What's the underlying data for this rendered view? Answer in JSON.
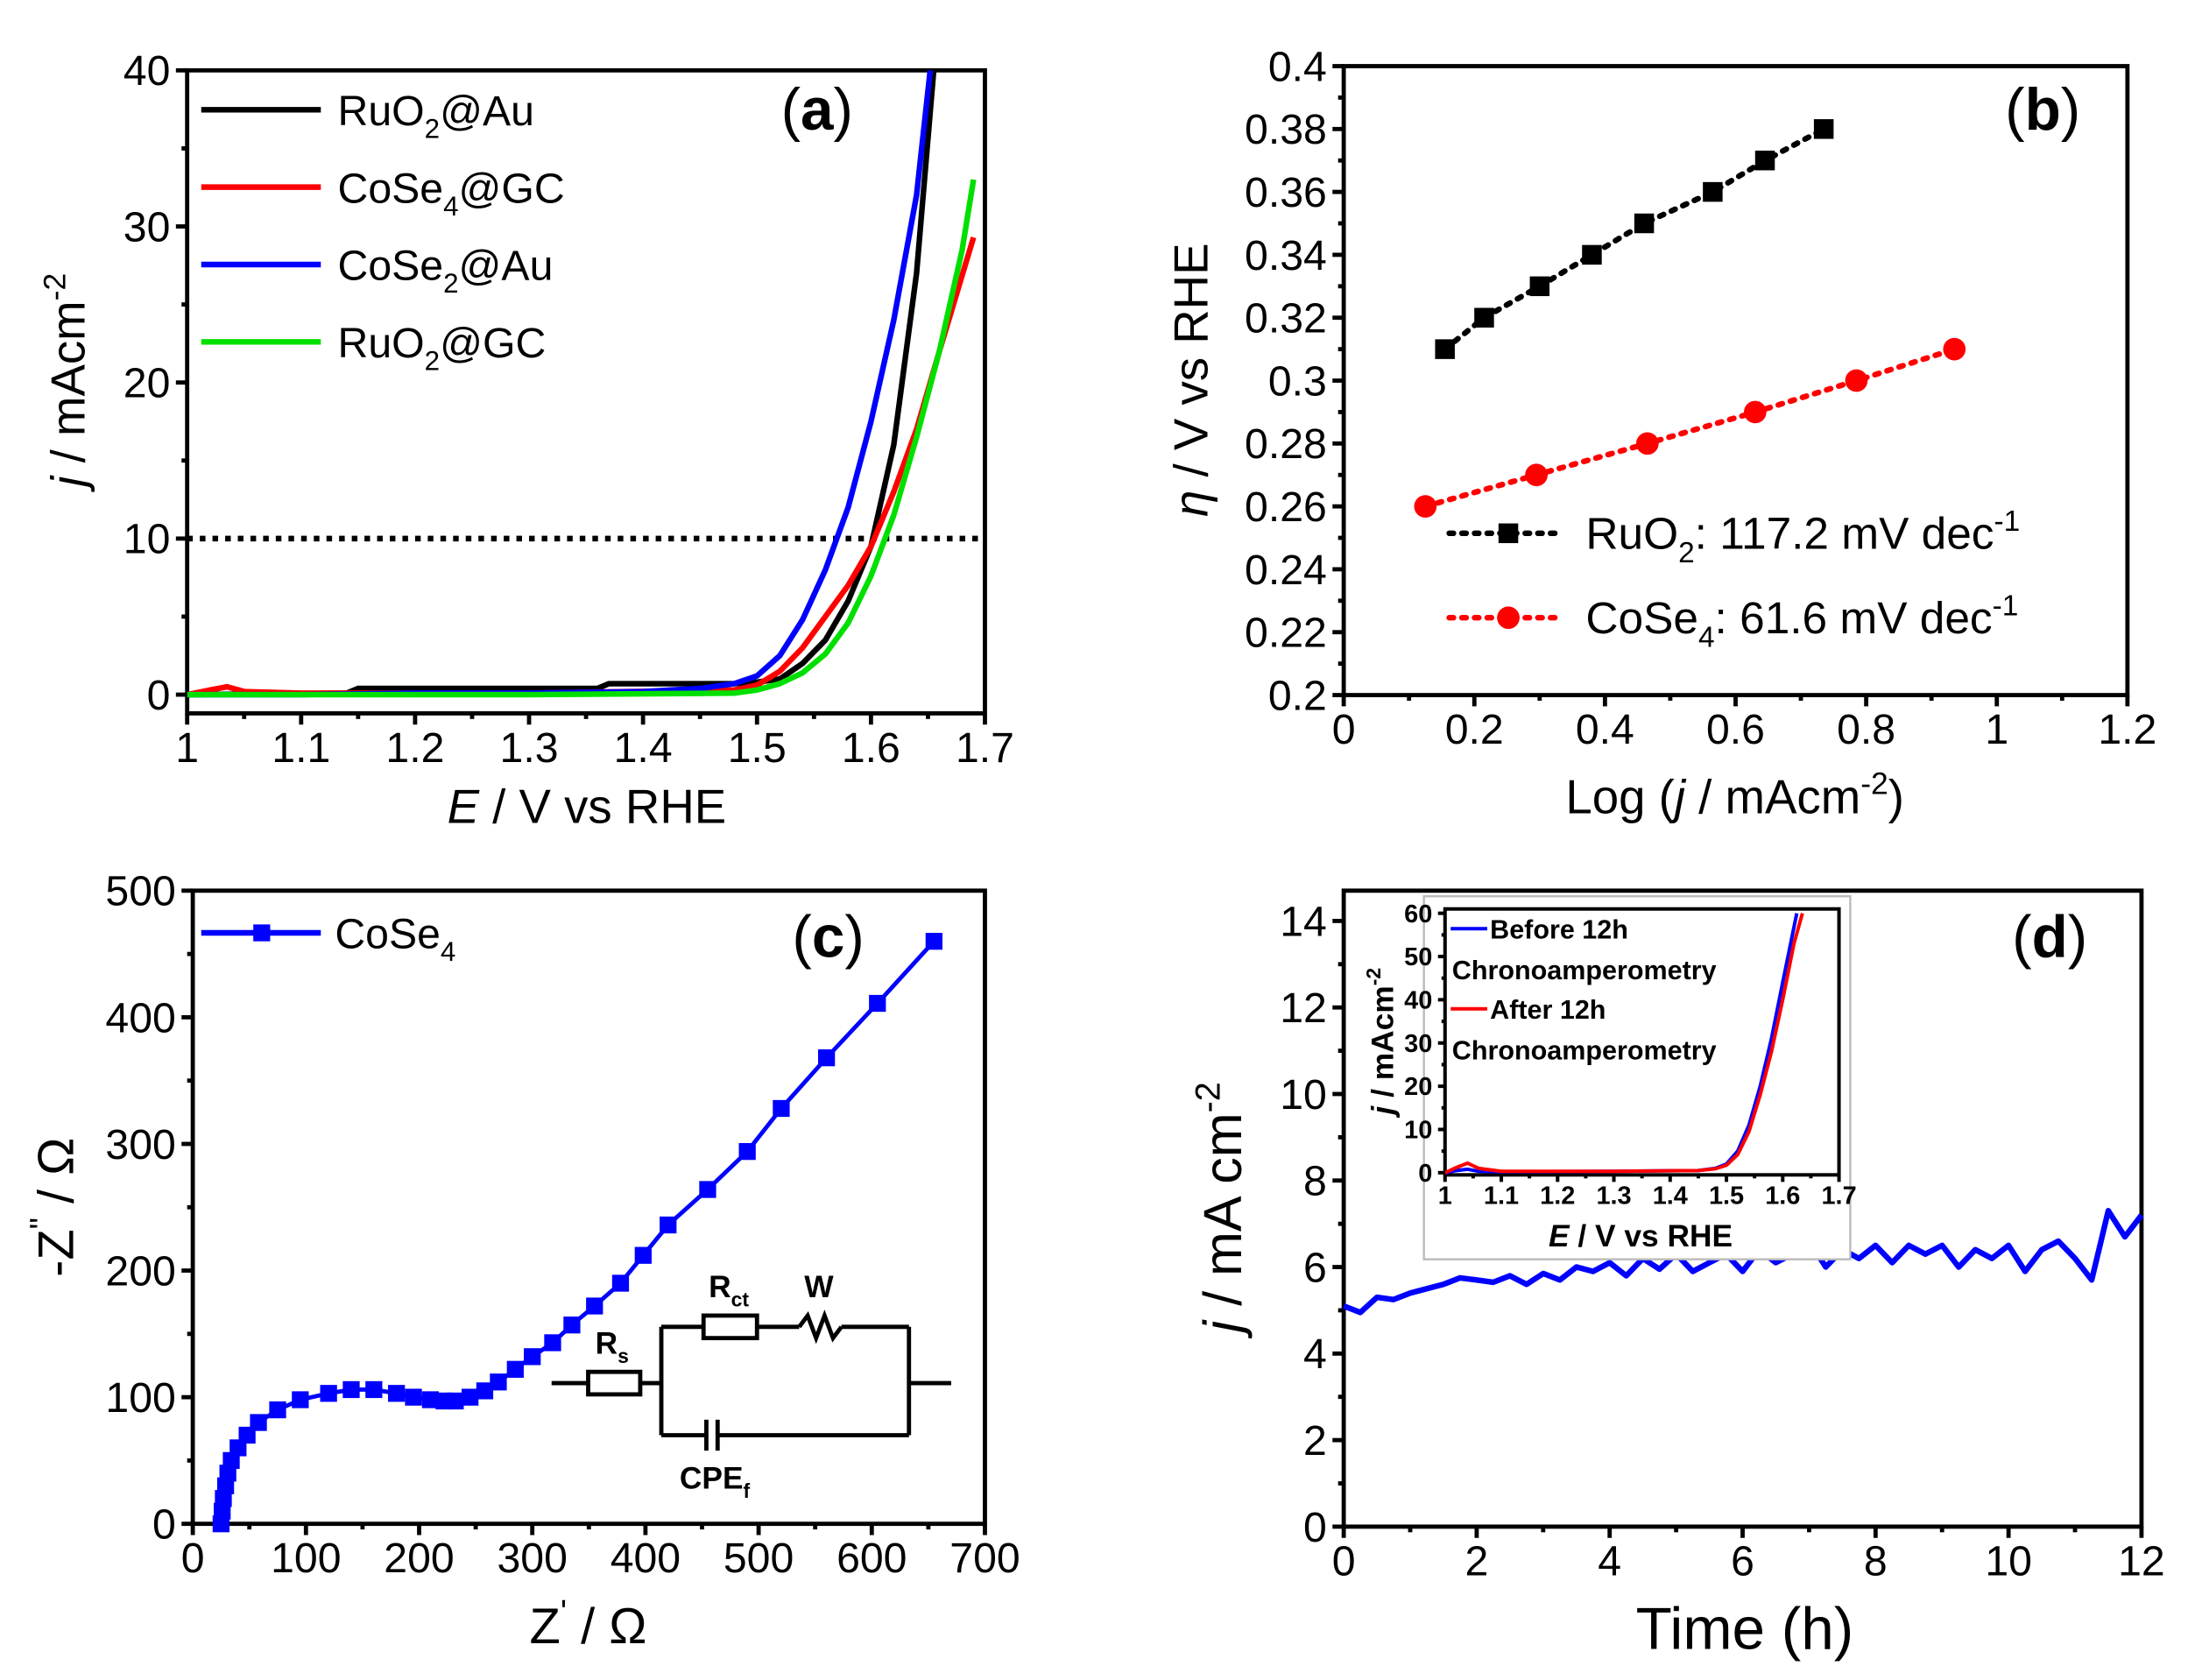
{
  "chart_data": [
    {
      "id": "a",
      "type": "line",
      "panel_label": [
        "(",
        "a",
        ")"
      ],
      "xlabel": [
        [
          "E",
          "i"
        ],
        [
          " / V vs RHE",
          ""
        ]
      ],
      "ylabel": [
        [
          "j",
          "i"
        ],
        [
          " / mAcm",
          ""
        ],
        [
          "-2",
          "sup"
        ]
      ],
      "xlim": [
        1,
        1.7
      ],
      "ylim": [
        -1.2,
        40
      ],
      "xticks": [
        1,
        1.1,
        1.2,
        1.3,
        1.4,
        1.5,
        1.6,
        1.7
      ],
      "xtick_labels": [
        "1",
        "1.1",
        "1.2",
        "1.3",
        "1.4",
        "1.5",
        "1.6",
        "1.7"
      ],
      "yticks": [
        0,
        10,
        20,
        30,
        40
      ],
      "ytick_labels": [
        "0",
        "10",
        "20",
        "30",
        "40"
      ],
      "reference_line": {
        "y": 10,
        "style": "dotted",
        "color": "#000000"
      },
      "legend_position": "top-left",
      "series": [
        {
          "name": "RuO2@Au",
          "label": [
            [
              "RuO",
              ""
            ],
            [
              "2",
              "sub"
            ],
            [
              "@Au",
              ""
            ]
          ],
          "color": "#000000",
          "x": [
            1,
            1.14,
            1.15,
            1.36,
            1.37,
            1.48,
            1.5,
            1.52,
            1.54,
            1.56,
            1.58,
            1.6,
            1.62,
            1.64,
            1.655
          ],
          "y": [
            0,
            0.1,
            0.4,
            0.4,
            0.7,
            0.7,
            0.8,
            1,
            2,
            3.5,
            6,
            9.5,
            16,
            27,
            40
          ]
        },
        {
          "name": "CoSe4@GC",
          "label": [
            [
              "CoSe",
              ""
            ],
            [
              "4",
              "sub"
            ],
            [
              "@GC",
              ""
            ]
          ],
          "color": "#ff0000",
          "x": [
            1,
            1.02,
            1.035,
            1.05,
            1.1,
            1.3,
            1.48,
            1.5,
            1.52,
            1.54,
            1.56,
            1.58,
            1.6,
            1.62,
            1.64,
            1.66,
            1.69
          ],
          "y": [
            0,
            0.3,
            0.5,
            0.2,
            0.1,
            0.1,
            0.3,
            0.6,
            1.5,
            3,
            5,
            7,
            9.5,
            13,
            17,
            22,
            29.3
          ]
        },
        {
          "name": "CoSe2@Au",
          "label": [
            [
              "CoSe",
              ""
            ],
            [
              "2",
              "sub"
            ],
            [
              "@Au",
              ""
            ]
          ],
          "color": "#0000ff",
          "x": [
            1,
            1.1,
            1.2,
            1.3,
            1.4,
            1.45,
            1.48,
            1.5,
            1.52,
            1.54,
            1.56,
            1.58,
            1.6,
            1.62,
            1.64,
            1.652
          ],
          "y": [
            0,
            0,
            0.1,
            0.1,
            0.2,
            0.4,
            0.7,
            1.2,
            2.5,
            4.8,
            8,
            12,
            17.5,
            24,
            32,
            40
          ]
        },
        {
          "name": "RuO2@GC",
          "label": [
            [
              "RuO",
              ""
            ],
            [
              "2",
              "sub"
            ],
            [
              "@GC",
              ""
            ]
          ],
          "color": "#00e000",
          "x": [
            1,
            1.3,
            1.48,
            1.5,
            1.52,
            1.54,
            1.56,
            1.58,
            1.6,
            1.62,
            1.64,
            1.66,
            1.68,
            1.69
          ],
          "y": [
            0,
            0,
            0.1,
            0.3,
            0.7,
            1.4,
            2.6,
            4.6,
            7.6,
            11.5,
            16.5,
            22,
            28.5,
            33
          ]
        }
      ]
    },
    {
      "id": "b",
      "type": "scatter",
      "panel_label": [
        "(",
        "b",
        ")"
      ],
      "xlabel": [
        [
          "Log (",
          ""
        ],
        [
          "j",
          "i"
        ],
        [
          " / mAcm",
          ""
        ],
        [
          "-2",
          "sup"
        ],
        [
          ")",
          ""
        ]
      ],
      "ylabel": [
        [
          "η",
          "i"
        ],
        [
          " / V vs RHE",
          ""
        ]
      ],
      "xlim": [
        0,
        1.2
      ],
      "ylim": [
        0.2,
        0.4
      ],
      "xticks": [
        0,
        0.2,
        0.4,
        0.6,
        0.8,
        1,
        1.2
      ],
      "xtick_labels": [
        "0",
        "0.2",
        "0.4",
        "0.6",
        "0.8",
        "1",
        "1.2"
      ],
      "yticks": [
        0.2,
        0.22,
        0.24,
        0.26,
        0.28,
        0.3,
        0.32,
        0.34,
        0.36,
        0.38,
        0.4
      ],
      "ytick_labels": [
        "0.2",
        "0.22",
        "0.24",
        "0.26",
        "0.28",
        "0.3",
        "0.32",
        "0.34",
        "0.36",
        "0.38",
        "0.4"
      ],
      "legend_position": "bottom-right",
      "series": [
        {
          "name": "RuO2",
          "label": [
            [
              "RuO",
              ""
            ],
            [
              "2",
              "sub"
            ],
            [
              ": 117.2 mV dec",
              ""
            ],
            [
              "-1",
              "sup"
            ]
          ],
          "color": "#000000",
          "marker": "square",
          "x": [
            0.155,
            0.215,
            0.3,
            0.38,
            0.46,
            0.565,
            0.645,
            0.735
          ],
          "y": [
            0.31,
            0.32,
            0.33,
            0.34,
            0.35,
            0.36,
            0.37,
            0.38
          ]
        },
        {
          "name": "CoSe4",
          "label": [
            [
              "CoSe",
              ""
            ],
            [
              "4",
              "sub"
            ],
            [
              ": 61.6 mV dec",
              ""
            ],
            [
              "-1",
              "sup"
            ]
          ],
          "color": "#ff0000",
          "marker": "circle",
          "x": [
            0.125,
            0.295,
            0.465,
            0.63,
            0.785,
            0.935
          ],
          "y": [
            0.26,
            0.27,
            0.28,
            0.29,
            0.3,
            0.31
          ]
        }
      ]
    },
    {
      "id": "c",
      "type": "scatter",
      "panel_label": [
        "(",
        "c",
        ")"
      ],
      "xlabel": [
        [
          "Z",
          ""
        ],
        [
          "'",
          "sup"
        ],
        [
          " / Ω",
          ""
        ]
      ],
      "ylabel": [
        [
          "-Z",
          ""
        ],
        [
          "\"",
          "sup"
        ],
        [
          " / Ω",
          ""
        ]
      ],
      "xlim": [
        0,
        700
      ],
      "ylim": [
        0,
        500
      ],
      "xticks": [
        0,
        100,
        200,
        300,
        400,
        500,
        600,
        700
      ],
      "xtick_labels": [
        "0",
        "100",
        "200",
        "300",
        "400",
        "500",
        "600",
        "700"
      ],
      "yticks": [
        0,
        100,
        200,
        300,
        400,
        500
      ],
      "ytick_labels": [
        "0",
        "100",
        "200",
        "300",
        "400",
        "500"
      ],
      "legend_position": "top-left",
      "series": [
        {
          "name": "CoSe4",
          "label": [
            [
              "CoSe",
              ""
            ],
            [
              "4",
              "sub"
            ]
          ],
          "color": "#0000ff",
          "marker": "square",
          "x": [
            25,
            26,
            27,
            29,
            31,
            34,
            40,
            48,
            58,
            75,
            95,
            120,
            140,
            160,
            180,
            195,
            210,
            222,
            232,
            245,
            258,
            270,
            285,
            300,
            318,
            335,
            355,
            378,
            398,
            420,
            455,
            490,
            520,
            560,
            605,
            655
          ],
          "y": [
            0,
            10,
            20,
            30,
            40,
            50,
            60,
            70,
            80,
            90,
            98,
            103,
            106,
            106,
            103,
            100,
            98,
            97,
            97,
            100,
            105,
            112,
            122,
            132,
            143,
            157,
            172,
            190,
            212,
            236,
            264,
            294,
            328,
            368,
            411,
            460
          ]
        }
      ],
      "circuit": {
        "rs": [
          [
            "R",
            ""
          ],
          [
            "s",
            "sub"
          ]
        ],
        "rct": [
          [
            "R",
            ""
          ],
          [
            "ct",
            "sub"
          ]
        ],
        "w": [
          [
            "W",
            ""
          ]
        ],
        "cpe": [
          [
            "CPE",
            ""
          ],
          [
            "f",
            "sub"
          ]
        ]
      }
    },
    {
      "id": "d",
      "type": "line",
      "panel_label": [
        "(",
        "d",
        ")"
      ],
      "xlabel": [
        [
          "Time (h)",
          ""
        ]
      ],
      "ylabel": [
        [
          "j",
          "i"
        ],
        [
          " / mA cm",
          ""
        ],
        [
          "-2",
          "sup"
        ]
      ],
      "xlim": [
        0,
        12
      ],
      "ylim": [
        0,
        14.7
      ],
      "xticks": [
        0,
        2,
        4,
        6,
        8,
        10,
        12
      ],
      "xtick_labels": [
        "0",
        "2",
        "4",
        "6",
        "8",
        "10",
        "12"
      ],
      "yticks": [
        0,
        2,
        4,
        6,
        8,
        10,
        12,
        14
      ],
      "ytick_labels": [
        "0",
        "2",
        "4",
        "6",
        "8",
        "10",
        "12",
        "14"
      ],
      "series": [
        {
          "name": "chronoamperometry",
          "color": "#0000ff",
          "x": [
            0,
            0.25,
            0.5,
            0.75,
            1,
            1.25,
            1.5,
            1.75,
            2,
            2.25,
            2.5,
            2.75,
            3,
            3.25,
            3.5,
            3.75,
            4,
            4.25,
            4.5,
            4.75,
            5,
            5.25,
            5.5,
            5.75,
            6,
            6.25,
            6.5,
            6.75,
            7,
            7.25,
            7.5,
            7.75,
            8,
            8.25,
            8.5,
            8.75,
            9,
            9.25,
            9.5,
            9.75,
            10,
            10.25,
            10.5,
            10.75,
            11,
            11.25,
            11.5,
            11.75,
            12
          ],
          "y": [
            5.1,
            4.95,
            5.3,
            5.25,
            5.4,
            5.5,
            5.6,
            5.75,
            5.7,
            5.65,
            5.8,
            5.6,
            5.85,
            5.7,
            6.0,
            5.9,
            6.1,
            5.8,
            6.2,
            5.95,
            6.3,
            5.9,
            6.1,
            6.3,
            5.9,
            6.4,
            6.1,
            6.3,
            6.6,
            6.0,
            6.4,
            6.2,
            6.5,
            6.1,
            6.5,
            6.3,
            6.5,
            6.0,
            6.4,
            6.2,
            6.5,
            5.9,
            6.4,
            6.6,
            6.2,
            5.7,
            7.3,
            6.7,
            7.2
          ]
        }
      ],
      "inset": {
        "type": "line",
        "xlabel": [
          [
            "E",
            "i"
          ],
          [
            " / V vs RHE",
            ""
          ]
        ],
        "ylabel": [
          [
            "j",
            "i"
          ],
          [
            " / mAcm",
            ""
          ],
          [
            "-2",
            "sup"
          ]
        ],
        "xlim": [
          1,
          1.7
        ],
        "ylim": [
          -0.5,
          61
        ],
        "xticks": [
          1,
          1.1,
          1.2,
          1.3,
          1.4,
          1.5,
          1.6,
          1.7
        ],
        "xtick_labels": [
          "1",
          "1.1",
          "1.2",
          "1.3",
          "1.4",
          "1.5",
          "1.6",
          "1.7"
        ],
        "yticks": [
          0,
          10,
          20,
          30,
          40,
          50,
          60
        ],
        "ytick_labels": [
          "0",
          "10",
          "20",
          "30",
          "40",
          "50",
          "60"
        ],
        "series": [
          {
            "name": "Before 12h Chronoamperometry",
            "label_line1": "Before 12h",
            "label_line2": "Chronoamperometry",
            "color": "#0000ff",
            "x": [
              1,
              1.02,
              1.04,
              1.06,
              1.1,
              1.3,
              1.45,
              1.48,
              1.5,
              1.52,
              1.54,
              1.56,
              1.58,
              1.6,
              1.625
            ],
            "y": [
              0,
              0.5,
              0.8,
              0.3,
              0.2,
              0.3,
              0.5,
              1,
              2,
              5,
              11,
              20,
              31,
              44,
              60
            ]
          },
          {
            "name": "After 12h Chronoamperometry",
            "label_line1": "After 12h",
            "label_line2": "Chronoamperometry",
            "color": "#ff0000",
            "x": [
              1,
              1.02,
              1.04,
              1.06,
              1.1,
              1.3,
              1.45,
              1.48,
              1.5,
              1.52,
              1.54,
              1.56,
              1.58,
              1.6,
              1.62,
              1.635
            ],
            "y": [
              0,
              1.2,
              2.2,
              1,
              0.3,
              0.3,
              0.5,
              0.9,
              1.7,
              4.2,
              9.5,
              18,
              28,
              40,
              53,
              60
            ]
          }
        ]
      }
    }
  ]
}
